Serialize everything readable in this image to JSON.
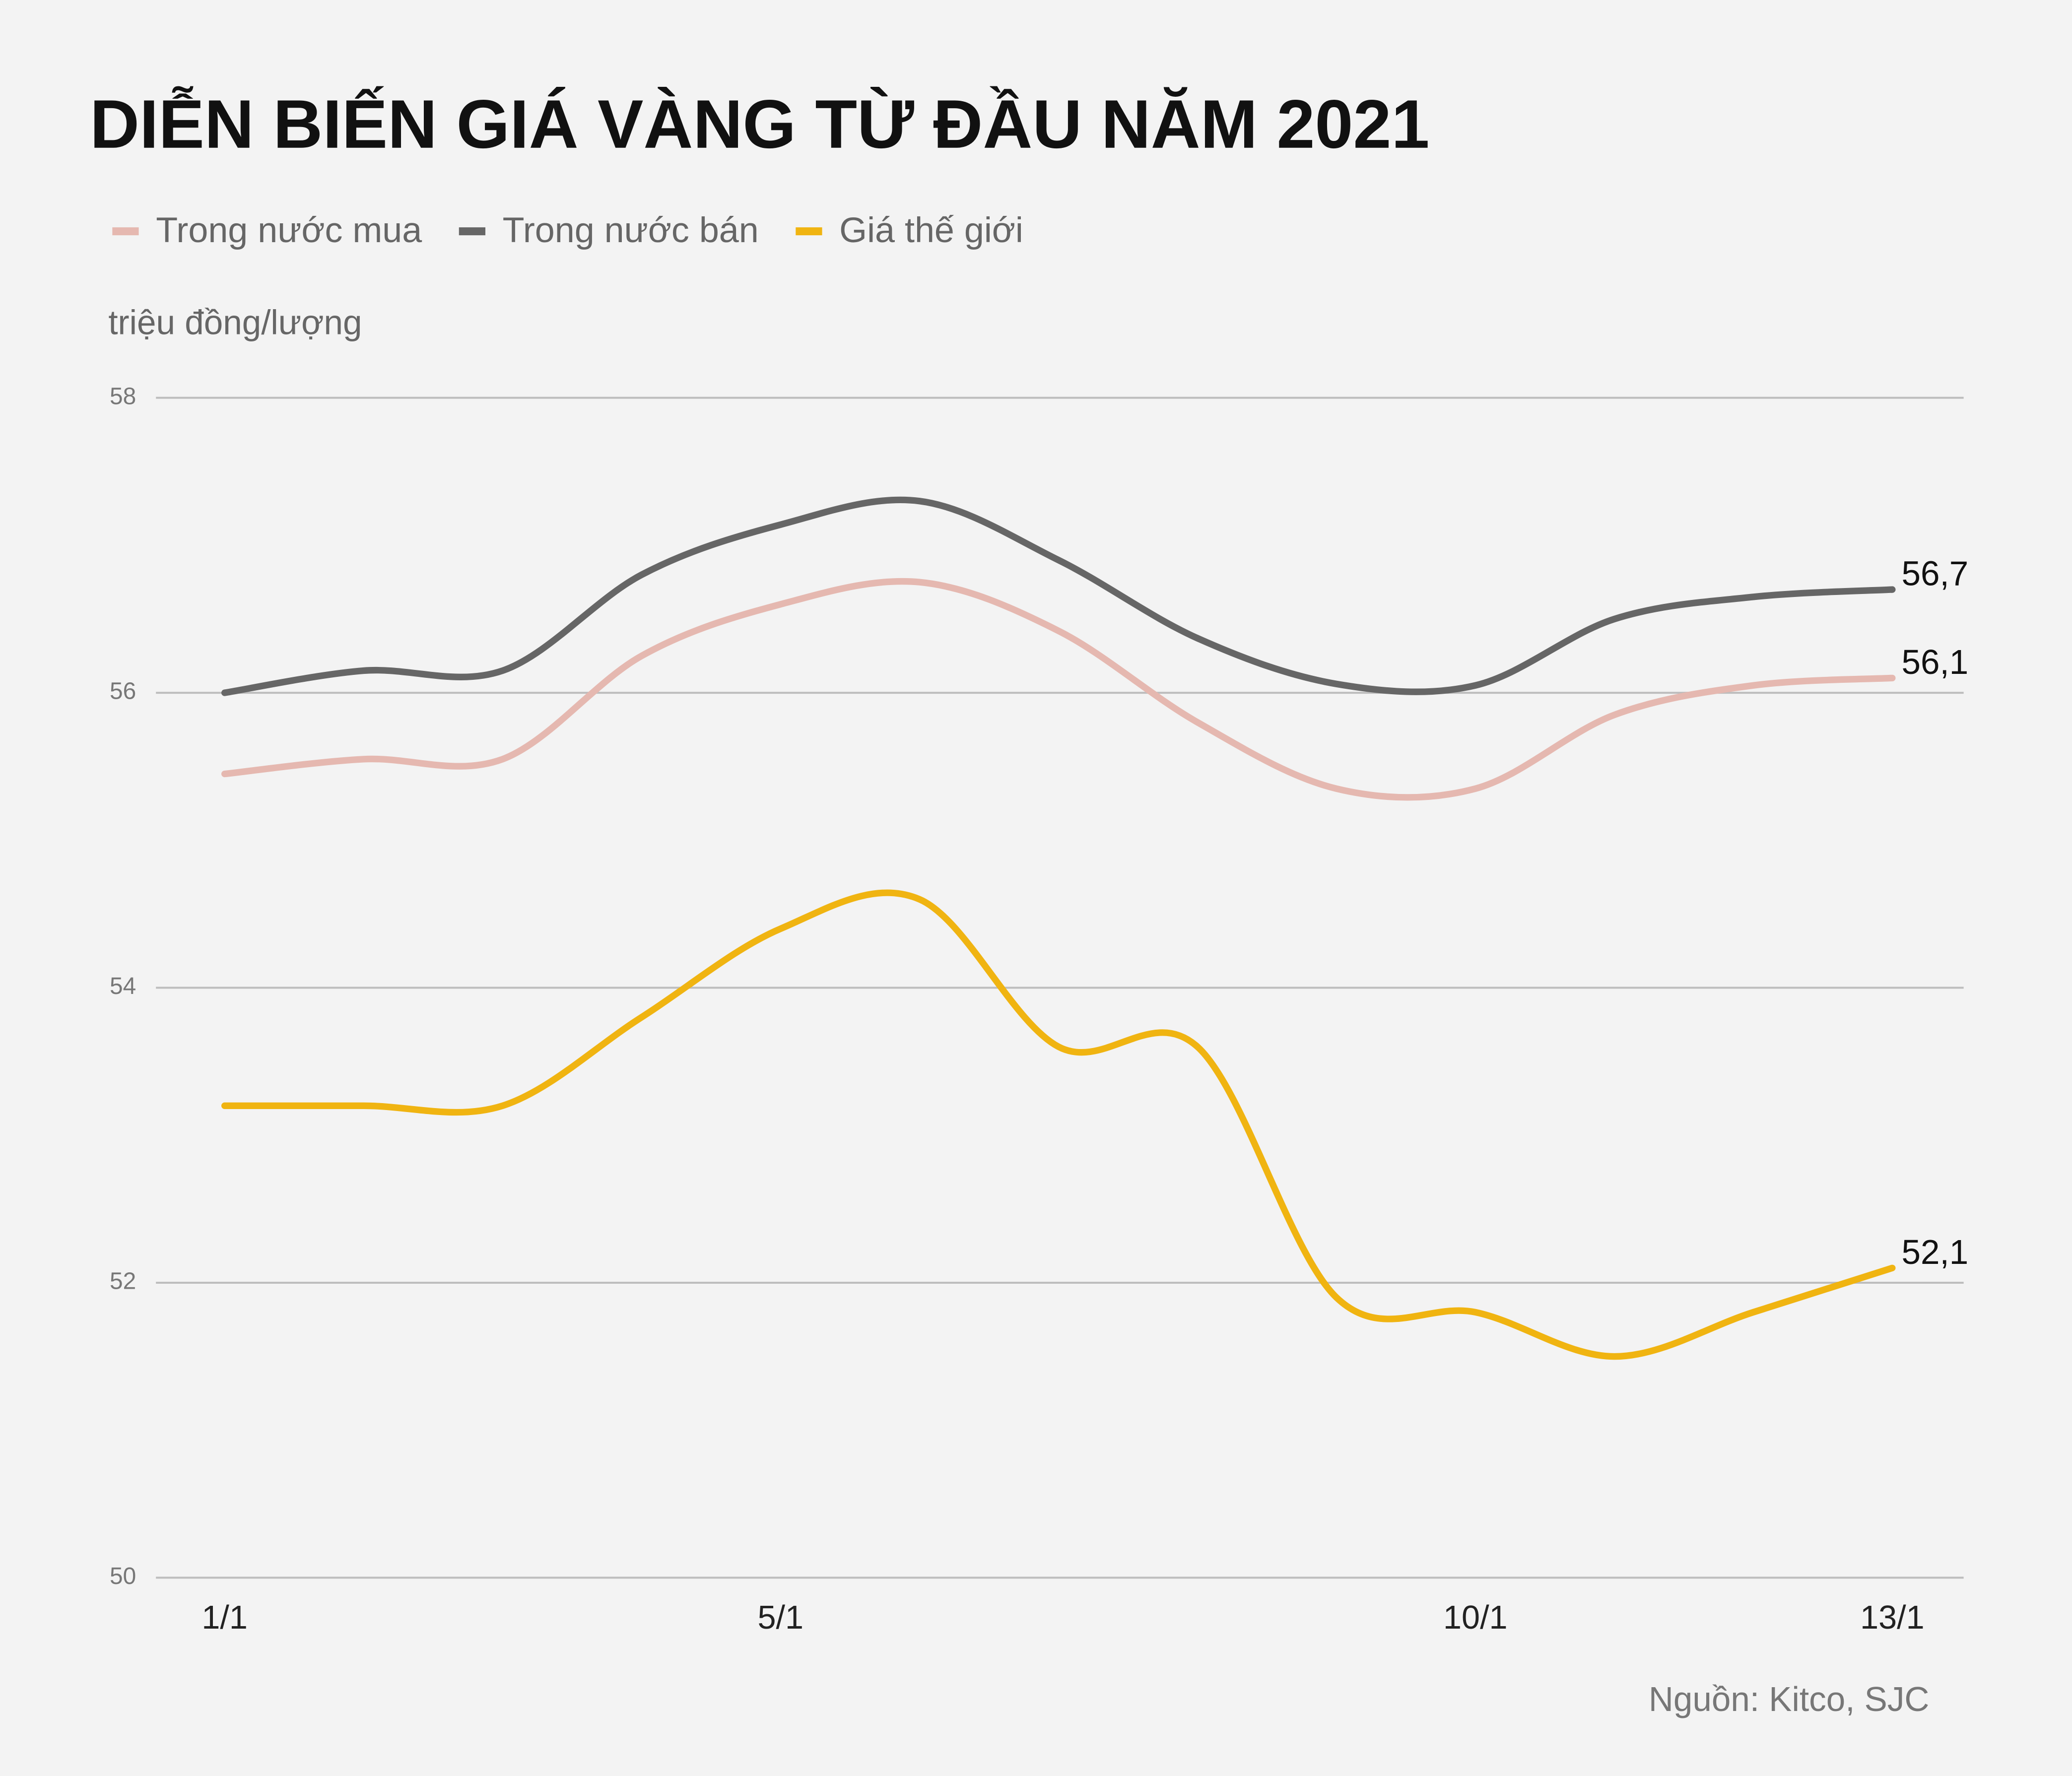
{
  "chart_data": {
    "type": "line",
    "title": "DIỄN BIẾN GIÁ VÀNG TỪ ĐẦU NĂM 2021",
    "y_label": "triệu đồng/lượng",
    "source": "Nguồn: Kitco, SJC",
    "categories": [
      "1/1",
      null,
      null,
      null,
      "5/1",
      null,
      null,
      null,
      null,
      "10/1",
      null,
      null,
      "13/1"
    ],
    "ylim": [
      50,
      58
    ],
    "yticks": [
      50,
      52,
      54,
      56,
      58
    ],
    "grid": true,
    "legend": "top-left",
    "series": [
      {
        "name": "Trong nước mua",
        "color": "#e5b8b0",
        "values": [
          55.45,
          55.55,
          55.55,
          56.25,
          56.6,
          56.75,
          56.42,
          55.8,
          55.35,
          55.35,
          55.85,
          56.05,
          56.1
        ],
        "value_labels": [
          null,
          null,
          null,
          null,
          null,
          null,
          null,
          null,
          null,
          null,
          null,
          null,
          "56,1"
        ]
      },
      {
        "name": "Trong nước bán",
        "color": "#666666",
        "values": [
          56.0,
          56.15,
          56.15,
          56.8,
          57.14,
          57.3,
          56.9,
          56.37,
          56.06,
          56.05,
          56.5,
          56.65,
          56.7
        ],
        "value_labels": [
          null,
          null,
          null,
          null,
          null,
          null,
          null,
          null,
          null,
          null,
          null,
          null,
          "56,7"
        ]
      },
      {
        "name": "Giá thế giới",
        "color": "#f0b411",
        "values": [
          53.2,
          53.2,
          53.2,
          53.8,
          54.4,
          54.6,
          53.6,
          53.6,
          51.9,
          51.8,
          51.5,
          51.8,
          52.1
        ],
        "value_labels": [
          null,
          null,
          null,
          null,
          null,
          null,
          null,
          null,
          null,
          null,
          null,
          null,
          "52,1"
        ]
      }
    ]
  }
}
